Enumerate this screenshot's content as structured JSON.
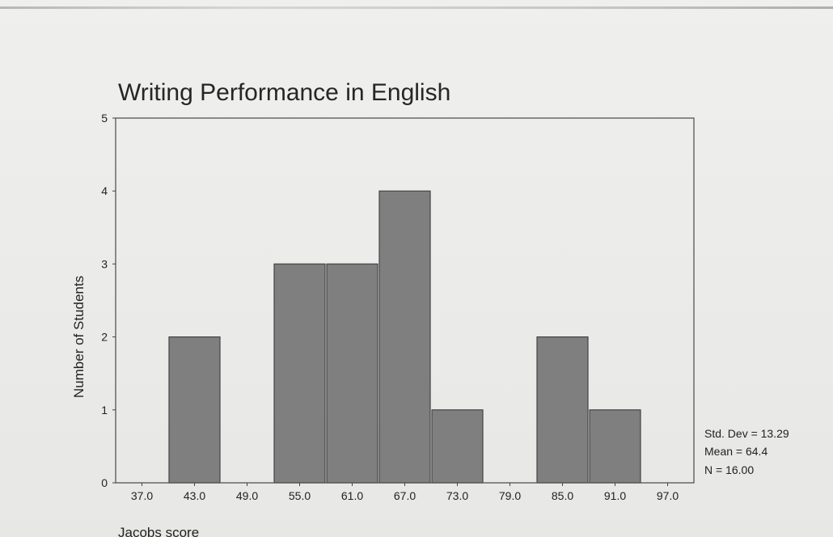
{
  "chart_data": {
    "type": "bar",
    "title": "Writing Performance in English",
    "xlabel": "Jacobs score",
    "ylabel": "Number of Students",
    "categories": [
      "37.0",
      "43.0",
      "49.0",
      "55.0",
      "61.0",
      "67.0",
      "73.0",
      "79.0",
      "85.0",
      "91.0",
      "97.0"
    ],
    "values": [
      0,
      2,
      0,
      3,
      3,
      4,
      1,
      0,
      2,
      1,
      0
    ],
    "yticks": [
      "0",
      "1",
      "2",
      "3",
      "4",
      "5"
    ],
    "ylim": [
      0,
      5
    ],
    "grid": false,
    "bar_color": "#7f7f7f",
    "stats": {
      "std_dev": "Std. Dev = 13.29",
      "mean": "Mean = 64.4",
      "n": "N = 16.00"
    }
  }
}
